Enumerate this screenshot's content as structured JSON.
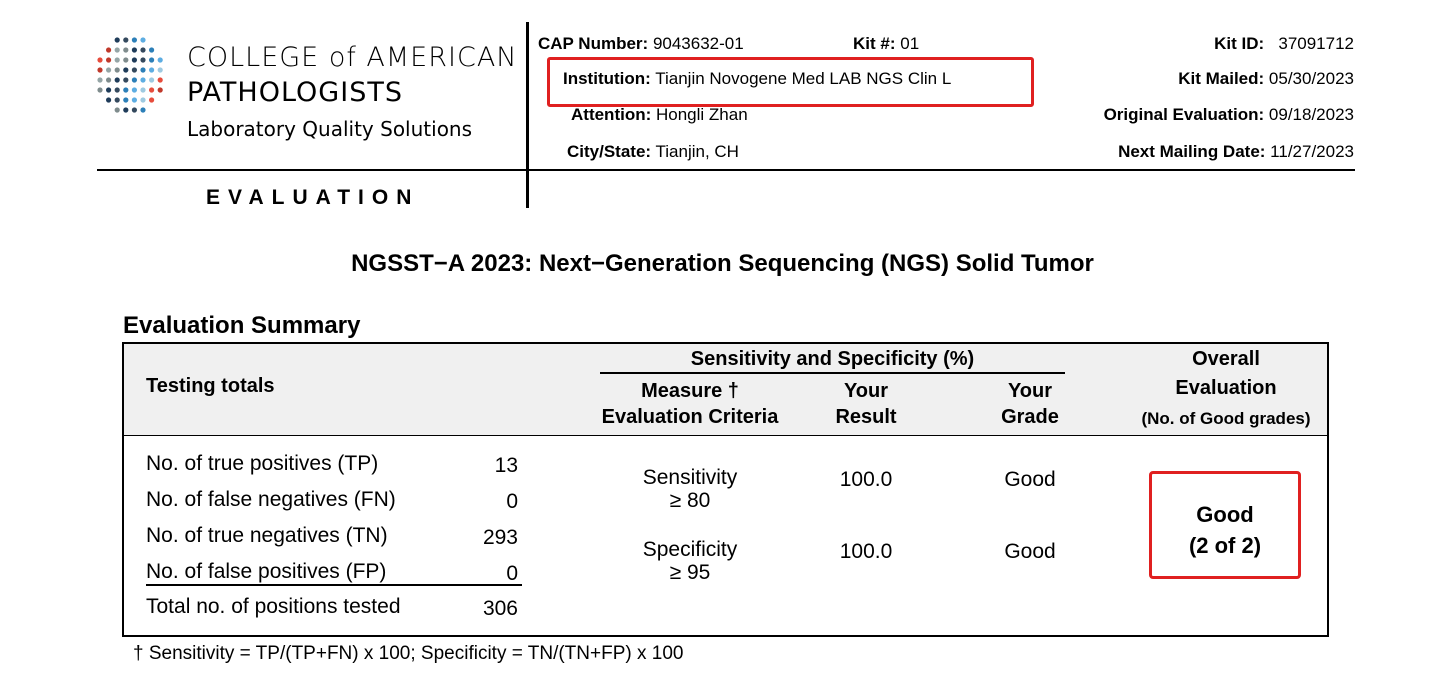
{
  "org": {
    "name_line1": "COLLEGE of AMERICAN",
    "name_line2": "PATHOLOGISTS",
    "tagline": "Laboratory Quality Solutions"
  },
  "section_label": "EVALUATION",
  "header": {
    "cap_number_label": "CAP Number:",
    "cap_number_value": "9043632-01",
    "kit_num_label": "Kit #:",
    "kit_num_value": "01",
    "institution_label": "Institution:",
    "institution_value": "Tianjin Novogene Med LAB NGS Clin L",
    "attention_label": "Attention:",
    "attention_value": "Hongli Zhan",
    "city_label": "City/State:",
    "city_value": "Tianjin, CH",
    "kit_id_label": "Kit ID:",
    "kit_id_value": "37091712",
    "kit_mailed_label": "Kit Mailed:",
    "kit_mailed_value": "05/30/2023",
    "orig_eval_label": "Original Evaluation:",
    "orig_eval_value": "09/18/2023",
    "next_mail_label": "Next Mailing Date:",
    "next_mail_value": "11/27/2023"
  },
  "title": "NGSST−A 2023: Next−Generation Sequencing (NGS) Solid Tumor",
  "summary_title": "Evaluation Summary",
  "table": {
    "col_testing": "Testing totals",
    "group_header": "Sensitivity and Specificity (%)",
    "col_measure_1": "Measure †",
    "col_measure_2": "Evaluation Criteria",
    "col_result_1": "Your",
    "col_result_2": "Result",
    "col_grade_1": "Your",
    "col_grade_2": "Grade",
    "col_overall_1": "Overall",
    "col_overall_2": "Evaluation",
    "col_overall_3": "(No. of Good grades)",
    "totals": [
      {
        "label": "No. of true positives (TP)",
        "value": "13"
      },
      {
        "label": "No. of false negatives (FN)",
        "value": "0"
      },
      {
        "label": "No. of true negatives (TN)",
        "value": "293"
      },
      {
        "label": "No. of false positives (FP)",
        "value": "0"
      },
      {
        "label": "Total no. of positions tested",
        "value": "306"
      }
    ],
    "measures": [
      {
        "name": "Sensitivity",
        "criteria": "≥ 80",
        "result": "100.0",
        "grade": "Good"
      },
      {
        "name": "Specificity",
        "criteria": "≥ 95",
        "result": "100.0",
        "grade": "Good"
      }
    ],
    "overall_grade": "Good",
    "overall_count": "(2 of 2)"
  },
  "footnote": "† Sensitivity = TP/(TP+FN) x 100; Specificity = TN/(TN+FP) x 100",
  "colors": {
    "highlight": "#e02020",
    "header_bg": "#f0f0f0"
  }
}
